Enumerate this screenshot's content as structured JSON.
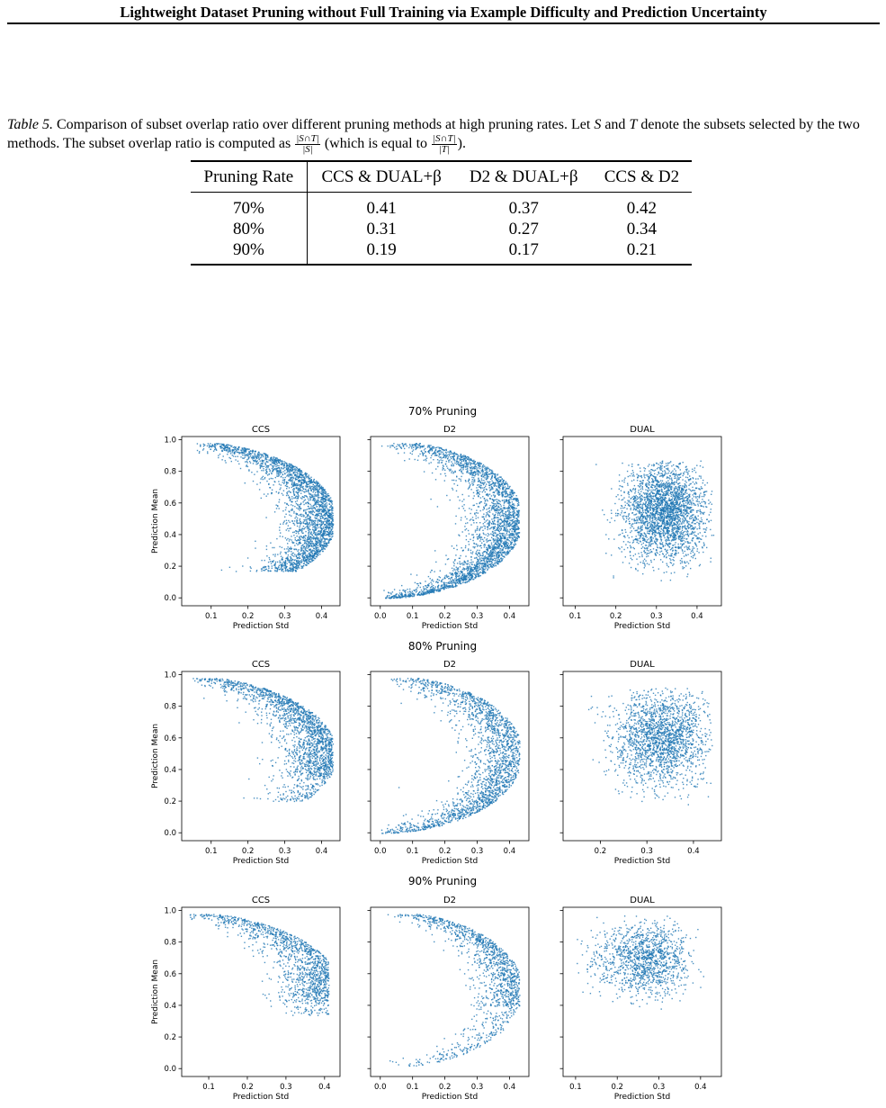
{
  "header": {
    "title": "Lightweight Dataset Pruning without Full Training via Example Difficulty and Prediction Uncertainty"
  },
  "caption": {
    "label": "Table 5.",
    "text1": " Comparison of subset overlap ratio over different pruning methods at high pruning rates. Let ",
    "S": "S",
    "and": " and ",
    "T": "T",
    "text2": " denote the subsets selected by the two methods. The subset overlap ratio is computed as ",
    "frac1_num": "|S∩T|",
    "frac1_den": "|S|",
    "text3": " (which is equal to ",
    "frac2_num": "|S∩T|",
    "frac2_den": "|T|",
    "text4": ")."
  },
  "table": {
    "headers": [
      "Pruning Rate",
      "CCS & DUAL+β",
      "D2 & DUAL+β",
      "CCS & D2"
    ],
    "rows": [
      [
        "70%",
        "0.41",
        "0.37",
        "0.42"
      ],
      [
        "80%",
        "0.31",
        "0.27",
        "0.34"
      ],
      [
        "90%",
        "0.19",
        "0.17",
        "0.21"
      ]
    ]
  },
  "chart_data": [
    {
      "type": "scatter",
      "title": "70% Pruning",
      "point_color": "#1f77b4",
      "panels": [
        {
          "subtitle": "CCS",
          "xlabel": "Prediction Std",
          "ylabel": "Prediction Mean",
          "xlim": [
            0.02,
            0.45
          ],
          "ylim": [
            -0.05,
            1.02
          ],
          "xticks": [
            "0.1",
            "0.2",
            "0.3",
            "0.4"
          ],
          "yticks": [
            "0.0",
            "0.2",
            "0.4",
            "0.6",
            "0.8",
            "1.0"
          ],
          "distribution": {
            "shape": "crescent-mid",
            "std_min": 0.05,
            "std_max": 0.43,
            "mean_min": 0.17,
            "mean_max": 0.98,
            "center": [
              0.33,
              0.55
            ]
          }
        },
        {
          "subtitle": "D2",
          "xlabel": "Prediction Std",
          "ylabel": "",
          "xlim": [
            -0.03,
            0.46
          ],
          "ylim": [
            -0.05,
            1.02
          ],
          "xticks": [
            "0.0",
            "0.1",
            "0.2",
            "0.3",
            "0.4"
          ],
          "yticks": [],
          "distribution": {
            "shape": "crescent-full",
            "std_min": 0.0,
            "std_max": 0.43,
            "mean_min": 0.0,
            "mean_max": 0.98,
            "center": [
              0.32,
              0.55
            ]
          }
        },
        {
          "subtitle": "DUAL",
          "xlabel": "Prediction Std",
          "ylabel": "",
          "xlim": [
            0.07,
            0.46
          ],
          "ylim": [
            -0.05,
            1.02
          ],
          "xticks": [
            "0.1",
            "0.2",
            "0.3",
            "0.4"
          ],
          "yticks": [],
          "distribution": {
            "shape": "blob",
            "std_min": 0.1,
            "std_max": 0.44,
            "mean_min": 0.1,
            "mean_max": 0.87,
            "center": [
              0.32,
              0.55
            ]
          }
        }
      ]
    },
    {
      "type": "scatter",
      "title": "80% Pruning",
      "point_color": "#1f77b4",
      "panels": [
        {
          "subtitle": "CCS",
          "xlabel": "Prediction Std",
          "ylabel": "Prediction Mean",
          "xlim": [
            0.02,
            0.45
          ],
          "ylim": [
            -0.05,
            1.02
          ],
          "xticks": [
            "0.1",
            "0.2",
            "0.3",
            "0.4"
          ],
          "yticks": [
            "0.0",
            "0.2",
            "0.4",
            "0.6",
            "0.8",
            "1.0"
          ],
          "distribution": {
            "shape": "crescent-upper",
            "std_min": 0.05,
            "std_max": 0.43,
            "mean_min": 0.2,
            "mean_max": 0.98,
            "center": [
              0.33,
              0.62
            ]
          }
        },
        {
          "subtitle": "D2",
          "xlabel": "Prediction Std",
          "ylabel": "",
          "xlim": [
            -0.03,
            0.46
          ],
          "ylim": [
            -0.05,
            1.02
          ],
          "xticks": [
            "0.0",
            "0.1",
            "0.2",
            "0.3",
            "0.4"
          ],
          "yticks": [],
          "distribution": {
            "shape": "crescent-full",
            "std_min": 0.0,
            "std_max": 0.43,
            "mean_min": 0.0,
            "mean_max": 0.98,
            "center": [
              0.33,
              0.58
            ]
          }
        },
        {
          "subtitle": "DUAL",
          "xlabel": "Prediction Std",
          "ylabel": "",
          "xlim": [
            0.12,
            0.46
          ],
          "ylim": [
            -0.05,
            1.02
          ],
          "xticks": [
            "0.2",
            "0.3",
            "0.4"
          ],
          "yticks": [],
          "distribution": {
            "shape": "blob",
            "std_min": 0.13,
            "std_max": 0.44,
            "mean_min": 0.18,
            "mean_max": 0.92,
            "center": [
              0.33,
              0.6
            ]
          }
        }
      ]
    },
    {
      "type": "scatter",
      "title": "90% Pruning",
      "point_color": "#1f77b4",
      "panels": [
        {
          "subtitle": "CCS",
          "xlabel": "Prediction Std",
          "ylabel": "Prediction Mean",
          "xlim": [
            0.03,
            0.44
          ],
          "ylim": [
            -0.05,
            1.02
          ],
          "xticks": [
            "0.1",
            "0.2",
            "0.3",
            "0.4"
          ],
          "yticks": [
            "0.0",
            "0.2",
            "0.4",
            "0.6",
            "0.8",
            "1.0"
          ],
          "distribution": {
            "shape": "crescent-upper",
            "std_min": 0.05,
            "std_max": 0.41,
            "mean_min": 0.34,
            "mean_max": 0.98,
            "center": [
              0.32,
              0.68
            ]
          }
        },
        {
          "subtitle": "D2",
          "xlabel": "Prediction Std",
          "ylabel": "",
          "xlim": [
            -0.03,
            0.46
          ],
          "ylim": [
            -0.05,
            1.02
          ],
          "xticks": [
            "0.0",
            "0.1",
            "0.2",
            "0.3",
            "0.4"
          ],
          "yticks": [],
          "distribution": {
            "shape": "crescent-upper",
            "std_min": 0.02,
            "std_max": 0.43,
            "mean_min": 0.02,
            "mean_max": 0.98,
            "center": [
              0.32,
              0.65
            ]
          }
        },
        {
          "subtitle": "DUAL",
          "xlabel": "Prediction Std",
          "ylabel": "",
          "xlim": [
            0.07,
            0.45
          ],
          "ylim": [
            -0.05,
            1.02
          ],
          "xticks": [
            "0.1",
            "0.2",
            "0.3",
            "0.4"
          ],
          "yticks": [],
          "distribution": {
            "shape": "blob-upper",
            "std_min": 0.1,
            "std_max": 0.43,
            "mean_min": 0.38,
            "mean_max": 0.97,
            "center": [
              0.32,
              0.7
            ]
          }
        }
      ]
    }
  ]
}
